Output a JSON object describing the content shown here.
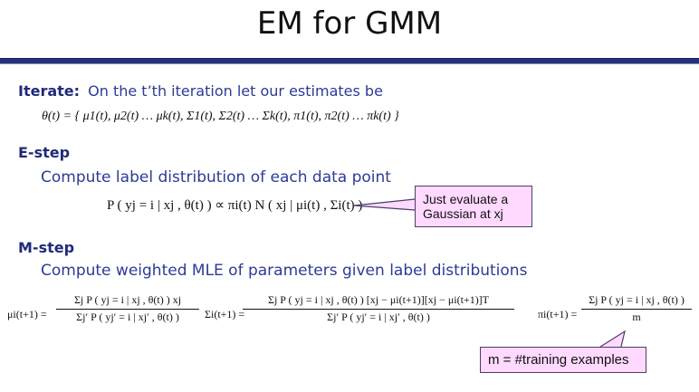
{
  "title": "EM for GMM",
  "iterate": {
    "label": "Iterate:",
    "text": "On the t’th iteration let our estimates be",
    "params": "θ(t) = { μ1(t), μ2(t) … μk(t), Σ1(t), Σ2(t) … Σk(t), π1(t), π2(t) … πk(t) }"
  },
  "estep": {
    "label": "E-step",
    "text": "Compute label distribution of each data point",
    "equation": "P ( yj = i | xj , θ(t) ) ∝ πi(t) N ( xj | μi(t) , Σi(t) )",
    "callout": "Just evaluate a Gaussian at xj"
  },
  "mstep": {
    "label": "M-step",
    "text": "Compute weighted MLE of parameters given label distributions",
    "mu_lhs": "μi(t+1) =",
    "mu_num": "Σj P ( yj = i | xj , θ(t) ) xj",
    "mu_den": "Σj′ P ( yj′ = i | xj′ , θ(t) )",
    "sigma_lhs": "Σi(t+1) =",
    "sigma_num": "Σj P ( yj = i | xj , θ(t) ) [xj − μi(t+1)][xj − μi(t+1)]T",
    "sigma_den": "Σj′ P ( yj′ = i | xj′ , θ(t) )",
    "pi_lhs": "πi(t+1) =",
    "pi_num": "Σj P ( yj = i | xj , θ(t) )",
    "pi_den": "m",
    "callout": "m = #training examples"
  }
}
